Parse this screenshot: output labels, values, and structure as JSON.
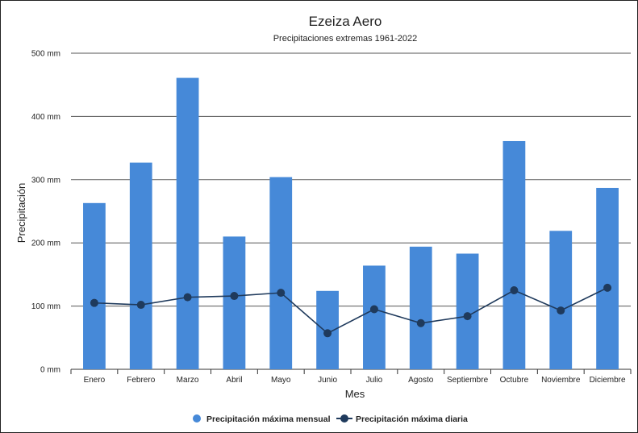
{
  "chart_data": {
    "type": "bar",
    "title": "Ezeiza Aero",
    "subtitle": "Precipitaciones extremas 1961-2022",
    "xlabel": "Mes",
    "ylabel": "Precipitación",
    "ylim": [
      0,
      500
    ],
    "yticks": [
      {
        "value": 0,
        "label": "0 mm"
      },
      {
        "value": 100,
        "label": "100 mm"
      },
      {
        "value": 200,
        "label": "200 mm"
      },
      {
        "value": 300,
        "label": "300 mm"
      },
      {
        "value": 400,
        "label": "400 mm"
      },
      {
        "value": 500,
        "label": "500 mm"
      }
    ],
    "grid": true,
    "legend_position": "bottom",
    "categories": [
      "Enero",
      "Febrero",
      "Marzo",
      "Abril",
      "Mayo",
      "Junio",
      "Julio",
      "Agosto",
      "Septiembre",
      "Octubre",
      "Noviembre",
      "Diciembre"
    ],
    "series": [
      {
        "name": "Precipitación máxima mensual",
        "type": "bar",
        "color": "#4689d8",
        "values": [
          263,
          327,
          461,
          210,
          304,
          124,
          164,
          194,
          183,
          361,
          219,
          287
        ]
      },
      {
        "name": "Precipitación máxima diaria",
        "type": "line",
        "color": "#1f3a5c",
        "values": [
          105,
          102,
          114,
          116,
          121,
          57,
          95,
          73,
          84,
          125,
          93,
          129
        ]
      }
    ]
  }
}
